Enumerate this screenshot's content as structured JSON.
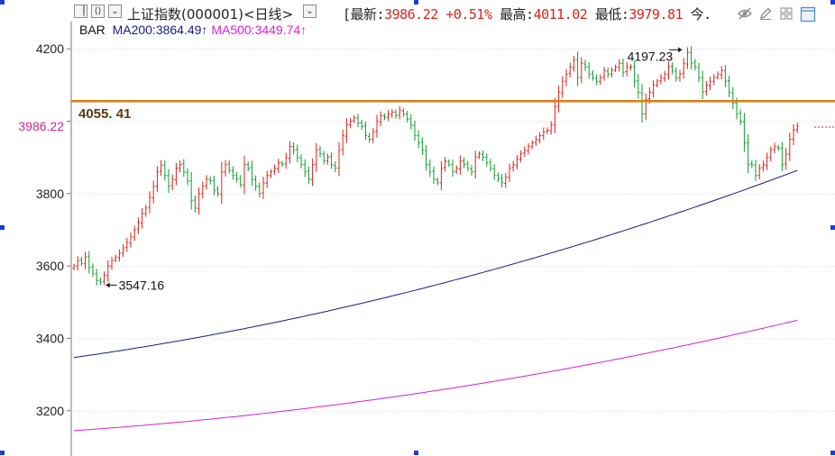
{
  "window": {
    "title": "上证指数(000001)",
    "period_label": "日线",
    "toolbar_icons": [
      "hide-eye-icon",
      "draw-pencil-icon",
      "layout-grid-icon",
      "window-icon"
    ]
  },
  "quote": {
    "open_bracket": "[",
    "latest_label": "最新:",
    "latest_value": "3986.22",
    "change_value": "+0.51%",
    "high_label": "最高:",
    "high_value": "4011.02",
    "low_label": "最低:",
    "low_value": "3979.81",
    "tail": "今."
  },
  "legend": {
    "bar_label": "BAR",
    "ma200_label": "MA200:3864.49↑",
    "ma500_label": "MA500:3449.74↑"
  },
  "colors": {
    "up": "#e0201c",
    "down": "#0a9f2c",
    "ma200": "#1a1a8c",
    "ma500": "#d81fd8",
    "hline": "#e07b10",
    "price_label": "#e0208c",
    "grid": "#e6e6e6"
  },
  "chart_data": {
    "type": "ohlc",
    "y_ticks": [
      3200,
      3400,
      3600,
      3800,
      4000,
      4200
    ],
    "y_tick_labels": [
      "3200",
      "3400",
      "3600",
      "3800",
      "4200"
    ],
    "ylim": [
      3075,
      4285
    ],
    "current_price_label": "3986.22",
    "horizontal_line": {
      "value": 4055.41,
      "label": "4055. 41"
    },
    "annotations": [
      {
        "text": "3547.16",
        "index": 8,
        "value": 3547.16
      },
      {
        "text": "4197.23",
        "index": 161,
        "value": 4197.23
      }
    ],
    "closes": [
      3600,
      3615,
      3608,
      3625,
      3595,
      3580,
      3560,
      3555,
      3575,
      3600,
      3615,
      3625,
      3635,
      3650,
      3665,
      3680,
      3700,
      3720,
      3745,
      3760,
      3790,
      3820,
      3860,
      3880,
      3850,
      3820,
      3840,
      3870,
      3880,
      3860,
      3835,
      3780,
      3760,
      3800,
      3820,
      3840,
      3835,
      3810,
      3800,
      3860,
      3880,
      3865,
      3850,
      3840,
      3825,
      3880,
      3870,
      3840,
      3820,
      3800,
      3830,
      3850,
      3860,
      3870,
      3885,
      3880,
      3900,
      3930,
      3920,
      3900,
      3880,
      3860,
      3840,
      3880,
      3920,
      3910,
      3890,
      3900,
      3880,
      3870,
      3920,
      3960,
      3990,
      4000,
      4010,
      3995,
      3985,
      3960,
      3950,
      3970,
      4000,
      4015,
      4010,
      4020,
      4025,
      4015,
      4030,
      4020,
      4005,
      3990,
      3960,
      3940,
      3920,
      3880,
      3860,
      3840,
      3830,
      3870,
      3890,
      3880,
      3860,
      3870,
      3890,
      3880,
      3870,
      3860,
      3900,
      3910,
      3900,
      3885,
      3870,
      3850,
      3840,
      3830,
      3845,
      3870,
      3880,
      3895,
      3910,
      3920,
      3930,
      3940,
      3950,
      3960,
      3970,
      3975,
      3990,
      4040,
      4080,
      4110,
      4130,
      4150,
      4170,
      4120,
      4160,
      4150,
      4130,
      4120,
      4110,
      4120,
      4140,
      4130,
      4140,
      4150,
      4160,
      4135,
      4150,
      4150,
      4110,
      4080,
      4020,
      4060,
      4080,
      4100,
      4110,
      4120,
      4130,
      4150,
      4140,
      4120,
      4130,
      4160,
      4190,
      4160,
      4150,
      4120,
      4080,
      4100,
      4110,
      4120,
      4130,
      4140,
      4110,
      4080,
      4050,
      4020,
      4000,
      3940,
      3880,
      3880,
      3850,
      3870,
      3880,
      3900,
      3920,
      3930,
      3925,
      3880,
      3910,
      3950,
      3975,
      3986.22
    ]
  }
}
